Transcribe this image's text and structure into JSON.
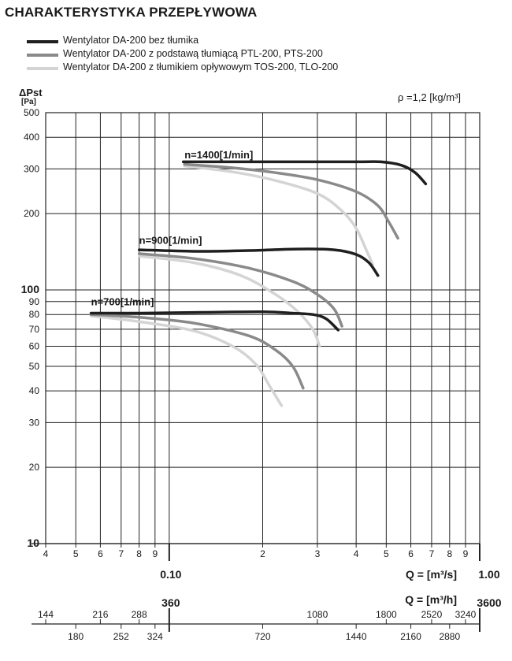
{
  "title": "CHARAKTERYSTYKA PRZEPŁYWOWA",
  "density_label": "ρ =1,2 [kg/m³]",
  "colors": {
    "series1": "#1f1f1f",
    "series2": "#8a8a8a",
    "series3": "#d4d4d4",
    "grid": "#222222"
  },
  "chart_data": {
    "type": "line",
    "x_scale": "log",
    "y_scale": "log",
    "xlim": [
      0.04,
      1.0
    ],
    "ylim": [
      10,
      500
    ],
    "grid": true,
    "xlabel": "Q = [m³/s]",
    "xlabel2": "Q = [m³/h]",
    "ylabel": "ΔPst",
    "ylabel_unit": "[Pa]",
    "x_ticks": [
      {
        "value": 0.04,
        "label": "4"
      },
      {
        "value": 0.05,
        "label": "5"
      },
      {
        "value": 0.06,
        "label": "6"
      },
      {
        "value": 0.07,
        "label": "7"
      },
      {
        "value": 0.08,
        "label": "8"
      },
      {
        "value": 0.09,
        "label": "9"
      },
      {
        "value": 0.2,
        "label": "2"
      },
      {
        "value": 0.3,
        "label": "3"
      },
      {
        "value": 0.4,
        "label": "4"
      },
      {
        "value": 0.5,
        "label": "5"
      },
      {
        "value": 0.6,
        "label": "6"
      },
      {
        "value": 0.7,
        "label": "7"
      },
      {
        "value": 0.8,
        "label": "8"
      },
      {
        "value": 0.9,
        "label": "9"
      }
    ],
    "x_major_labels": [
      {
        "value": 0.1,
        "label": "0.10"
      },
      {
        "value": 1.0,
        "label": "1.00"
      }
    ],
    "x2_ticks_top": [
      {
        "value": 144,
        "label": "144"
      },
      {
        "value": 216,
        "label": "216"
      },
      {
        "value": 288,
        "label": "288"
      },
      {
        "value": 1080,
        "label": "1080"
      },
      {
        "value": 1800,
        "label": "1800"
      },
      {
        "value": 2520,
        "label": "2520"
      },
      {
        "value": 3240,
        "label": "3240"
      }
    ],
    "x2_ticks_bottom": [
      {
        "value": 180,
        "label": "180"
      },
      {
        "value": 252,
        "label": "252"
      },
      {
        "value": 324,
        "label": "324"
      },
      {
        "value": 720,
        "label": "720"
      },
      {
        "value": 1440,
        "label": "1440"
      },
      {
        "value": 2160,
        "label": "2160"
      },
      {
        "value": 2880,
        "label": "2880"
      }
    ],
    "x2_major_labels": [
      {
        "value": 360,
        "label": "360"
      },
      {
        "value": 3600,
        "label": "3600"
      }
    ],
    "y_ticks": [
      {
        "value": 500,
        "label": "500",
        "bold": false
      },
      {
        "value": 400,
        "label": "400",
        "bold": false
      },
      {
        "value": 300,
        "label": "300",
        "bold": false
      },
      {
        "value": 200,
        "label": "200",
        "bold": false
      },
      {
        "value": 100,
        "label": "100",
        "bold": true
      },
      {
        "value": 90,
        "label": "90",
        "bold": false
      },
      {
        "value": 80,
        "label": "80",
        "bold": false
      },
      {
        "value": 70,
        "label": "70",
        "bold": false
      },
      {
        "value": 60,
        "label": "60",
        "bold": false
      },
      {
        "value": 50,
        "label": "50",
        "bold": false
      },
      {
        "value": 40,
        "label": "40",
        "bold": false
      },
      {
        "value": 30,
        "label": "30",
        "bold": false
      },
      {
        "value": 20,
        "label": "20",
        "bold": false
      },
      {
        "value": 10,
        "label": "10",
        "bold": true
      }
    ],
    "series": [
      {
        "name": "Wentylator DA-200 bez tłumika",
        "color": "#1f1f1f"
      },
      {
        "name": "Wentylator DA-200 z podstawą tłumiącą PTL-200, PTS-200",
        "color": "#8a8a8a"
      },
      {
        "name": "Wentylator DA-200 z tłumikiem opływowym TOS-200, TLO-200",
        "color": "#d4d4d4"
      }
    ],
    "speed_groups": [
      {
        "label": "n=1400[1/min]",
        "label_at": [
          0.112,
          330
        ],
        "curves": [
          {
            "series": 0,
            "points": [
              [
                0.111,
                320
              ],
              [
                0.16,
                320
              ],
              [
                0.25,
                320
              ],
              [
                0.4,
                320
              ],
              [
                0.48,
                320
              ],
              [
                0.56,
                310
              ],
              [
                0.62,
                290
              ],
              [
                0.67,
                262
              ]
            ]
          },
          {
            "series": 1,
            "points": [
              [
                0.112,
                313
              ],
              [
                0.16,
                303
              ],
              [
                0.22,
                290
              ],
              [
                0.3,
                272
              ],
              [
                0.4,
                244
              ],
              [
                0.47,
                215
              ],
              [
                0.51,
                185
              ],
              [
                0.545,
                160
              ]
            ]
          },
          {
            "series": 2,
            "points": [
              [
                0.112,
                308
              ],
              [
                0.16,
                292
              ],
              [
                0.22,
                270
              ],
              [
                0.3,
                240
              ],
              [
                0.36,
                205
              ],
              [
                0.4,
                175
              ],
              [
                0.43,
                145
              ],
              [
                0.452,
                126
              ]
            ]
          }
        ]
      },
      {
        "label": "n=900[1/min]",
        "label_at": [
          0.08,
          152
        ],
        "curves": [
          {
            "series": 0,
            "points": [
              [
                0.08,
                144
              ],
              [
                0.12,
                142
              ],
              [
                0.18,
                143
              ],
              [
                0.26,
                145
              ],
              [
                0.34,
                144
              ],
              [
                0.4,
                138
              ],
              [
                0.44,
                128
              ],
              [
                0.47,
                114
              ]
            ]
          },
          {
            "series": 1,
            "points": [
              [
                0.08,
                139
              ],
              [
                0.12,
                133
              ],
              [
                0.18,
                122
              ],
              [
                0.25,
                108
              ],
              [
                0.3,
                96
              ],
              [
                0.34,
                84
              ],
              [
                0.36,
                72
              ]
            ]
          },
          {
            "series": 2,
            "points": [
              [
                0.08,
                136
              ],
              [
                0.12,
                128
              ],
              [
                0.17,
                114
              ],
              [
                0.22,
                96
              ],
              [
                0.26,
                82
              ],
              [
                0.29,
                70
              ],
              [
                0.305,
                60
              ]
            ]
          }
        ]
      },
      {
        "label": "n=700[1/min]",
        "label_at": [
          0.056,
          87
        ],
        "curves": [
          {
            "series": 0,
            "points": [
              [
                0.056,
                81
              ],
              [
                0.08,
                81
              ],
              [
                0.12,
                81.5
              ],
              [
                0.2,
                82
              ],
              [
                0.25,
                81
              ],
              [
                0.29,
                80
              ],
              [
                0.32,
                77
              ],
              [
                0.35,
                69.5
              ]
            ]
          },
          {
            "series": 1,
            "points": [
              [
                0.056,
                80
              ],
              [
                0.08,
                78
              ],
              [
                0.12,
                74
              ],
              [
                0.18,
                66
              ],
              [
                0.22,
                58
              ],
              [
                0.25,
                50
              ],
              [
                0.27,
                41
              ]
            ]
          },
          {
            "series": 2,
            "points": [
              [
                0.056,
                79
              ],
              [
                0.08,
                75
              ],
              [
                0.12,
                69
              ],
              [
                0.16,
                60
              ],
              [
                0.19,
                51
              ],
              [
                0.21,
                42
              ],
              [
                0.23,
                35
              ]
            ]
          }
        ]
      }
    ]
  }
}
